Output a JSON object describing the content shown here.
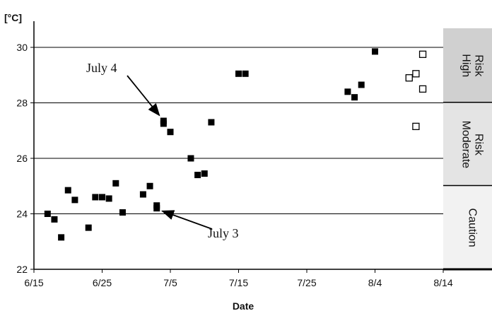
{
  "chart_data": {
    "type": "scatter",
    "ylabel": "[°C]",
    "xlabel": "Date",
    "ylim": [
      22,
      30
    ],
    "yticks": [
      22,
      24,
      26,
      28,
      30
    ],
    "xlim": [
      "2000-06-15",
      "2000-08-14"
    ],
    "xticks": [
      {
        "date": "2000-06-15",
        "label": "6/15"
      },
      {
        "date": "2000-06-25",
        "label": "6/25"
      },
      {
        "date": "2000-07-05",
        "label": "7/5"
      },
      {
        "date": "2000-07-15",
        "label": "7/15"
      },
      {
        "date": "2000-07-25",
        "label": "7/25"
      },
      {
        "date": "2000-08-04",
        "label": "8/4"
      },
      {
        "date": "2000-08-14",
        "label": "8/14"
      }
    ],
    "grid": "horizontal",
    "series": [
      {
        "marker": "filled-square",
        "color": "#000000",
        "points": [
          {
            "x": "2000-06-17",
            "y": 24.0
          },
          {
            "x": "2000-06-18",
            "y": 23.8
          },
          {
            "x": "2000-06-19",
            "y": 23.15
          },
          {
            "x": "2000-06-20",
            "y": 24.85
          },
          {
            "x": "2000-06-21",
            "y": 24.5
          },
          {
            "x": "2000-06-23",
            "y": 23.5
          },
          {
            "x": "2000-06-24",
            "y": 24.6
          },
          {
            "x": "2000-06-25",
            "y": 24.6
          },
          {
            "x": "2000-06-26",
            "y": 24.55
          },
          {
            "x": "2000-06-27",
            "y": 25.1
          },
          {
            "x": "2000-06-28",
            "y": 24.05
          },
          {
            "x": "2000-07-01",
            "y": 24.7
          },
          {
            "x": "2000-07-02",
            "y": 25.0
          },
          {
            "x": "2000-07-03",
            "y": 24.3
          },
          {
            "x": "2000-07-03",
            "y": 24.2
          },
          {
            "x": "2000-07-04",
            "y": 27.35
          },
          {
            "x": "2000-07-04",
            "y": 27.25
          },
          {
            "x": "2000-07-05",
            "y": 26.95
          },
          {
            "x": "2000-07-08",
            "y": 26.0
          },
          {
            "x": "2000-07-09",
            "y": 25.4
          },
          {
            "x": "2000-07-10",
            "y": 25.45
          },
          {
            "x": "2000-07-11",
            "y": 27.3
          },
          {
            "x": "2000-07-15",
            "y": 29.05
          },
          {
            "x": "2000-07-16",
            "y": 29.05
          },
          {
            "x": "2000-07-31",
            "y": 28.4
          },
          {
            "x": "2000-08-01",
            "y": 28.2
          },
          {
            "x": "2000-08-02",
            "y": 28.65
          },
          {
            "x": "2000-08-04",
            "y": 29.85
          }
        ]
      },
      {
        "marker": "open-square",
        "color": "#000000",
        "points": [
          {
            "x": "2000-08-09",
            "y": 28.9
          },
          {
            "x": "2000-08-10",
            "y": 29.05
          },
          {
            "x": "2000-08-10",
            "y": 27.15
          },
          {
            "x": "2000-08-11",
            "y": 29.75
          },
          {
            "x": "2000-08-11",
            "y": 28.5
          }
        ]
      }
    ],
    "annotations": [
      {
        "text": "July 4",
        "target": {
          "x": "2000-07-04",
          "y": 27.4
        }
      },
      {
        "text": "July 3",
        "target": {
          "x": "2000-07-03",
          "y": 24.15
        }
      }
    ],
    "risk_bands": [
      {
        "label_lines": [
          "High",
          "Risk"
        ],
        "from": 28,
        "to": 31,
        "color": "#d0d0d0"
      },
      {
        "label_lines": [
          "Moderate",
          "Risk"
        ],
        "from": 25,
        "to": 28,
        "color": "#e4e4e4"
      },
      {
        "label_lines": [
          "Caution"
        ],
        "from": 22,
        "to": 25,
        "color": "#f2f2f2"
      }
    ]
  }
}
